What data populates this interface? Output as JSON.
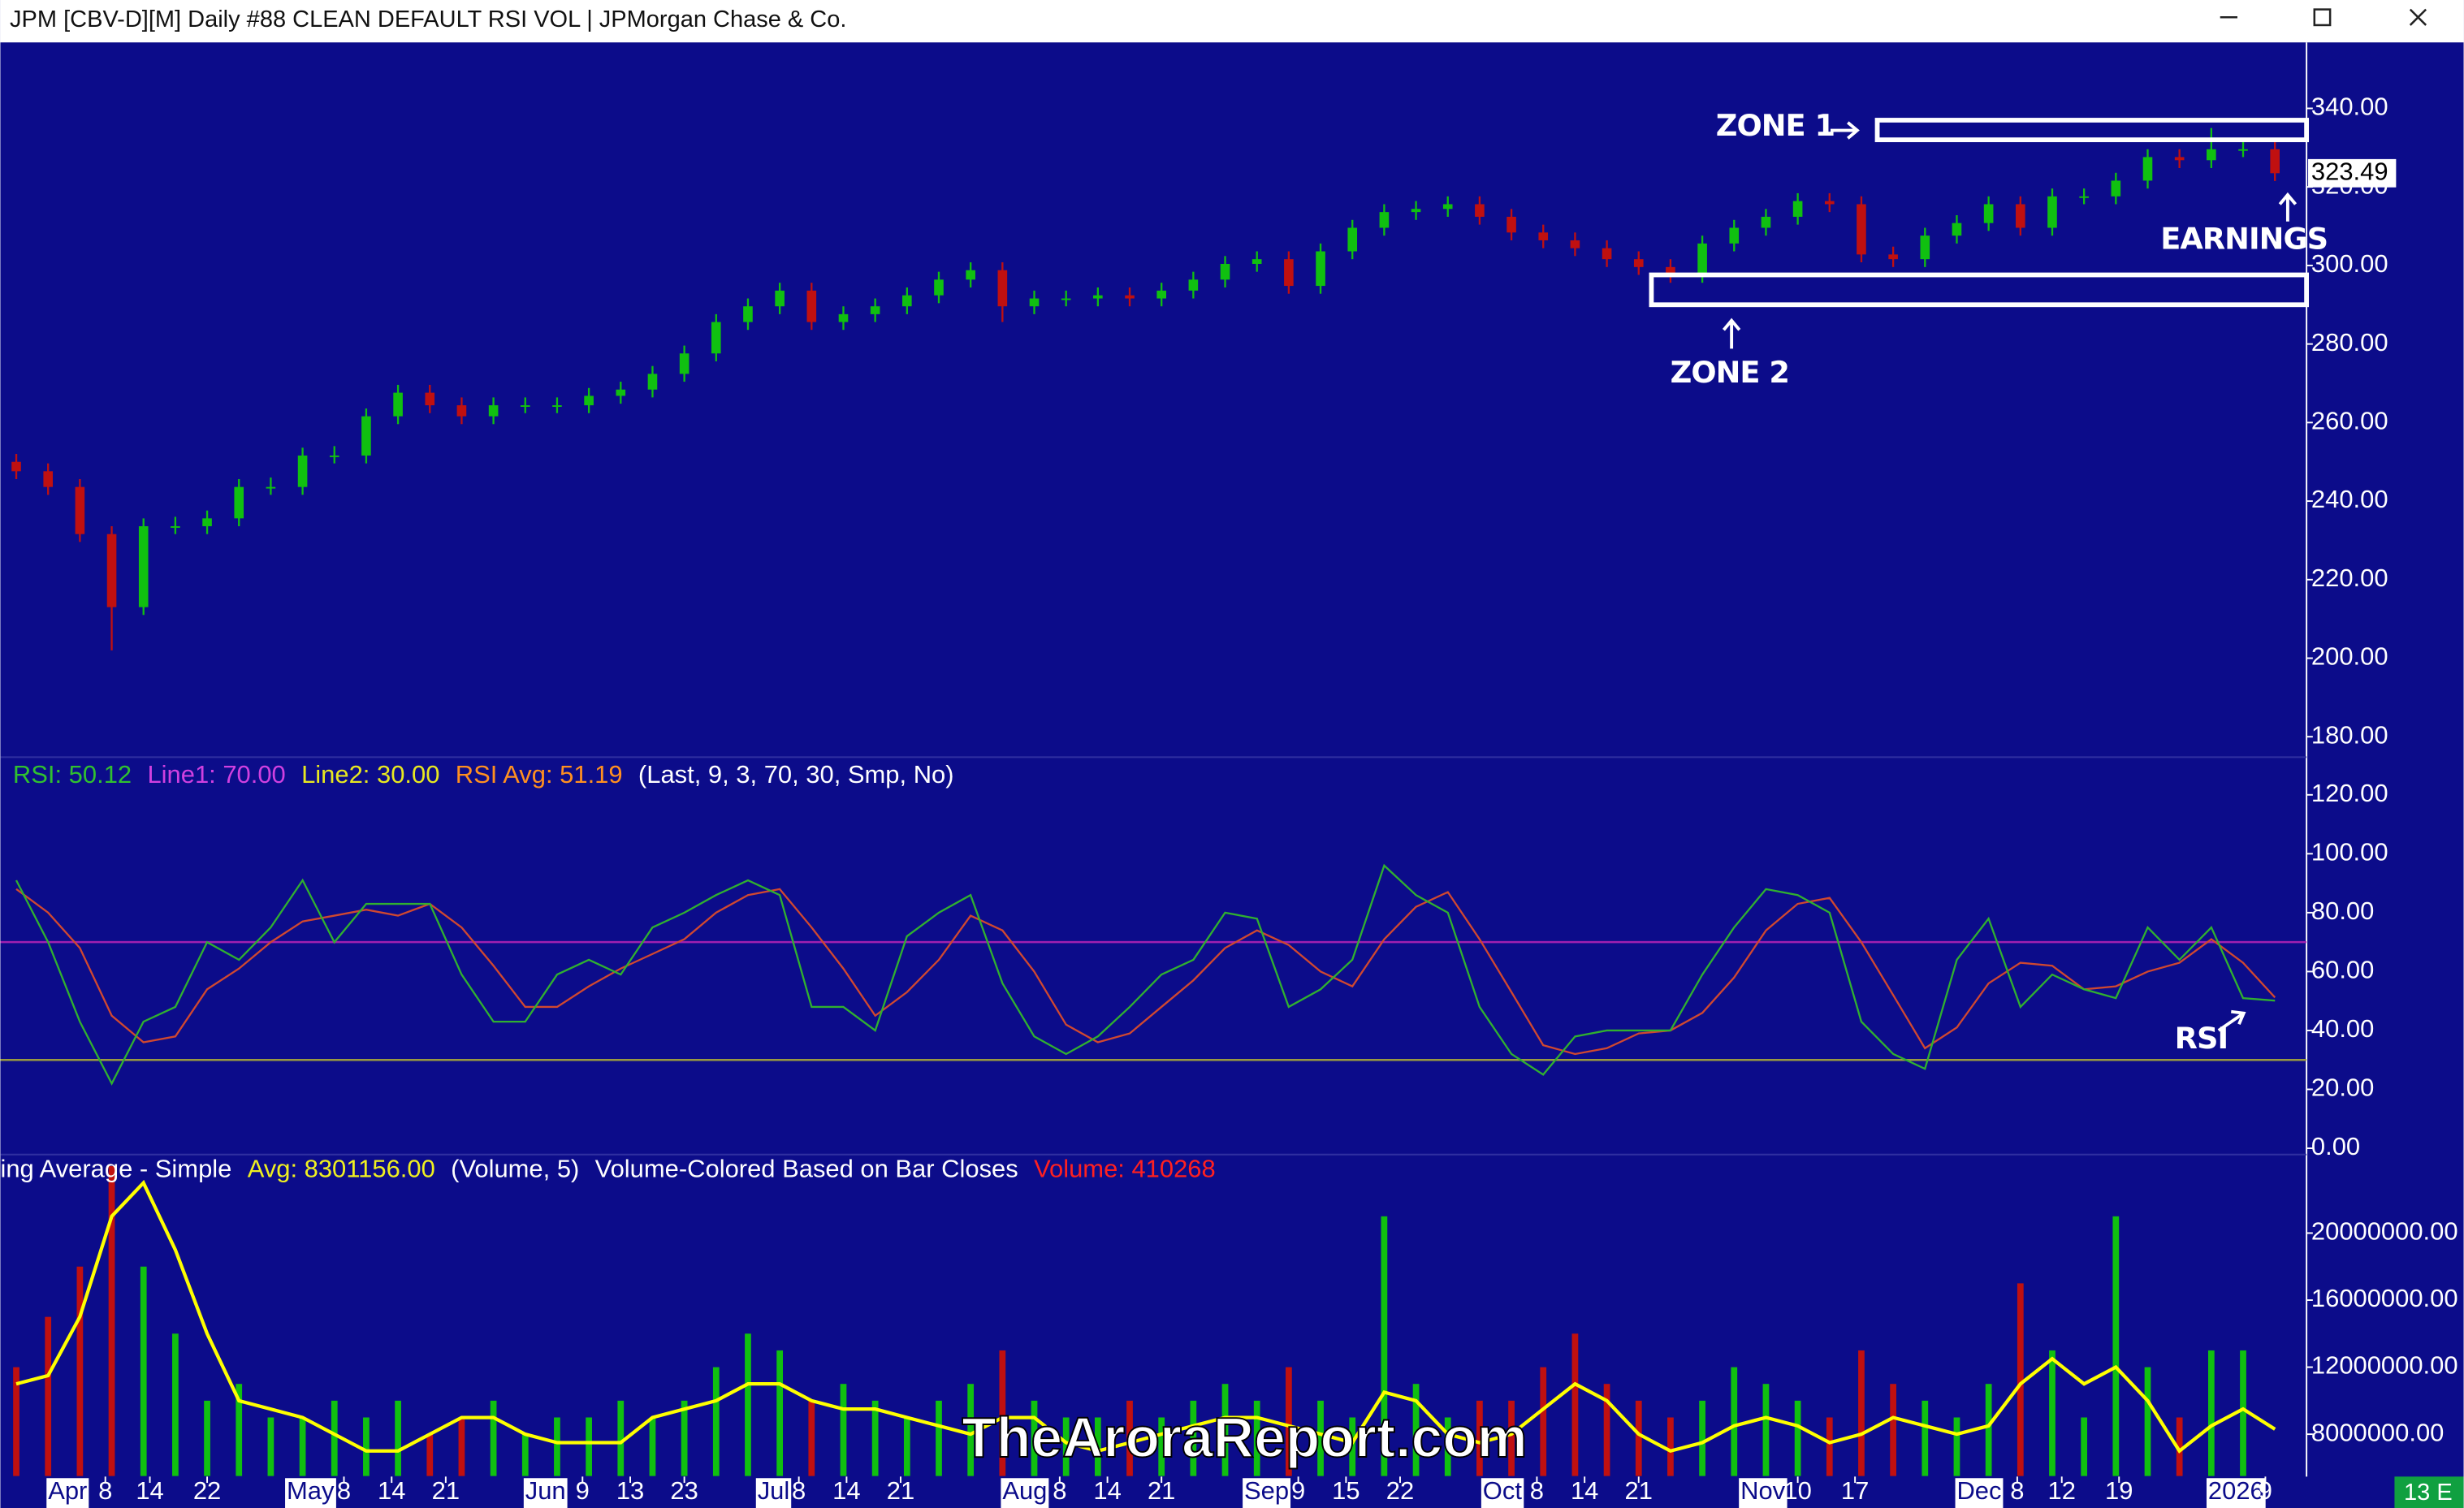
{
  "window_title": "JPM [CBV-D][M]  Daily #88 CLEAN DEFAULT RSI VOL | JPMorgan Chase & Co.",
  "x_axis": {
    "xlim": [
      -0.5,
      71.5
    ],
    "xticks": [
      {
        "value": 1.0,
        "label": "Apr"
      },
      {
        "value": 2.8,
        "label": "8"
      },
      {
        "value": 4.2,
        "label": "14"
      },
      {
        "value": 6.0,
        "label": "22"
      },
      {
        "value": 8.5,
        "label": "May"
      },
      {
        "value": 10.3,
        "label": "8"
      },
      {
        "value": 11.8,
        "label": "14"
      },
      {
        "value": 13.5,
        "label": "21"
      },
      {
        "value": 16.0,
        "label": "Jun"
      },
      {
        "value": 17.8,
        "label": "9"
      },
      {
        "value": 19.3,
        "label": "13"
      },
      {
        "value": 21.0,
        "label": "23"
      },
      {
        "value": 23.3,
        "label": "Jul"
      },
      {
        "value": 24.6,
        "label": "8"
      },
      {
        "value": 26.1,
        "label": "14"
      },
      {
        "value": 27.8,
        "label": "21"
      },
      {
        "value": 31.0,
        "label": "Aug"
      },
      {
        "value": 32.8,
        "label": "8"
      },
      {
        "value": 34.3,
        "label": "14"
      },
      {
        "value": 36.0,
        "label": "21"
      },
      {
        "value": 38.6,
        "label": "Sep"
      },
      {
        "value": 40.3,
        "label": "9"
      },
      {
        "value": 41.8,
        "label": "15"
      },
      {
        "value": 43.5,
        "label": "22"
      },
      {
        "value": 46.1,
        "label": "Oct"
      },
      {
        "value": 47.8,
        "label": "8"
      },
      {
        "value": 49.3,
        "label": "14"
      },
      {
        "value": 51.0,
        "label": "21"
      },
      {
        "value": 54.2,
        "label": "Nov"
      },
      {
        "value": 56.0,
        "label": "10"
      },
      {
        "value": 57.8,
        "label": "17"
      },
      {
        "value": 61.0,
        "label": "Dec"
      },
      {
        "value": 62.9,
        "label": "8"
      },
      {
        "value": 64.3,
        "label": "12"
      },
      {
        "value": 66.1,
        "label": "19"
      },
      {
        "value": 68.9,
        "label": "2026"
      },
      {
        "value": 70.7,
        "label": "9"
      }
    ]
  },
  "chart_data": [
    {
      "type": "candlestick",
      "up_color": "#10c010",
      "down_color": "#c01010",
      "ylim": [
        176,
        356
      ],
      "yticks": [
        {
          "value": 180,
          "label": "180.00"
        },
        {
          "value": 200,
          "label": "200.00"
        },
        {
          "value": 220,
          "label": "220.00"
        },
        {
          "value": 240,
          "label": "240.00"
        },
        {
          "value": 260,
          "label": "260.00"
        },
        {
          "value": 280,
          "label": "280.00"
        },
        {
          "value": 300,
          "label": "300.00"
        },
        {
          "value": 320,
          "label": "320.00"
        },
        {
          "value": 340,
          "label": "340.00"
        }
      ],
      "open": [
        250,
        247.6,
        243.6,
        231.6,
        213,
        233.6,
        233.6,
        235.6,
        243.6,
        243.6,
        251.6,
        251.6,
        261.6,
        267.6,
        264.4,
        261.6,
        264.4,
        264.4,
        264.4,
        266.8,
        268.4,
        272.4,
        277.6,
        285.6,
        289.6,
        293.6,
        285.6,
        287.6,
        289.6,
        292.4,
        296.4,
        298.8,
        289.6,
        291.6,
        291.6,
        292.4,
        291.6,
        293.6,
        296.4,
        300.4,
        301.6,
        294.8,
        303.6,
        309.6,
        313.6,
        314.4,
        315.6,
        312.4,
        308.4,
        306.4,
        304.4,
        301.6,
        299.6,
        297.6,
        305.6,
        309.6,
        312.4,
        316.4,
        315.6,
        302.8,
        301.6,
        307.6,
        310.8,
        315.6,
        309.6,
        317.6,
        317.6,
        321.6,
        327.6,
        326.8,
        329.6,
        329.6
      ],
      "high": [
        252,
        249.6,
        245.6,
        233.6,
        235.6,
        236,
        237.6,
        245.6,
        246,
        253.6,
        254,
        263.6,
        269.6,
        269.6,
        266.4,
        266.4,
        266.4,
        266.4,
        268.8,
        270.4,
        274.4,
        279.6,
        287.6,
        291.6,
        295.6,
        295.6,
        289.6,
        291.6,
        294.4,
        298.4,
        300.8,
        300.8,
        293.6,
        293.6,
        294.4,
        294.4,
        295.6,
        298.4,
        302.4,
        303.6,
        303.6,
        305.6,
        311.6,
        315.6,
        316.4,
        317.6,
        317.6,
        314.4,
        310.4,
        308.4,
        306.4,
        303.6,
        301.6,
        307.6,
        311.6,
        314.4,
        318.4,
        318.4,
        317.6,
        304.8,
        309.6,
        312.8,
        317.6,
        317.6,
        319.6,
        319.6,
        323.6,
        329.6,
        329.6,
        335,
        331.6,
        331.6
      ],
      "low": [
        245.6,
        241.6,
        229.6,
        202,
        211,
        231.6,
        231.6,
        233.6,
        241.6,
        241.6,
        249.6,
        249.6,
        259.6,
        262.4,
        259.6,
        259.6,
        262.4,
        262.4,
        262.4,
        264.8,
        266.4,
        270.4,
        275.6,
        283.6,
        287.6,
        283.6,
        283.6,
        285.6,
        287.6,
        290.4,
        294.4,
        285.6,
        287.6,
        289.6,
        289.6,
        289.6,
        289.6,
        291.6,
        294.4,
        298.4,
        292.8,
        292.8,
        301.6,
        307.6,
        311.6,
        312.4,
        310.4,
        306.4,
        304.4,
        302.4,
        299.6,
        297.6,
        295.6,
        295.6,
        303.6,
        307.6,
        310.4,
        313.6,
        300.8,
        299.6,
        299.6,
        305.6,
        308.8,
        307.6,
        307.6,
        315.6,
        315.6,
        319.6,
        324.8,
        324.8,
        327.6,
        321.5
      ],
      "close": [
        247.6,
        243.6,
        231.6,
        213,
        233.6,
        233.6,
        235.6,
        243.6,
        243.6,
        251.6,
        251.6,
        261.6,
        267.6,
        264.4,
        261.6,
        264.4,
        264.4,
        264.4,
        266.8,
        268.4,
        272.4,
        277.6,
        285.6,
        289.6,
        293.6,
        285.6,
        287.6,
        289.6,
        292.4,
        296.4,
        298.8,
        289.6,
        291.6,
        291.6,
        292.4,
        291.6,
        293.6,
        296.4,
        300.4,
        301.6,
        294.8,
        303.6,
        309.6,
        313.6,
        314.4,
        315.6,
        312.4,
        308.4,
        306.4,
        304.4,
        301.6,
        299.6,
        297.6,
        305.6,
        309.6,
        312.4,
        316.4,
        315.6,
        302.8,
        301.6,
        307.6,
        310.8,
        315.6,
        309.6,
        317.6,
        317.6,
        321.6,
        327.6,
        326.8,
        329.6,
        329.6,
        323.49
      ],
      "zones": [
        {
          "label": "ZONE 1",
          "low": 332,
          "high": 337,
          "start": 58.5
        },
        {
          "label": "ZONE 2",
          "low": 290,
          "high": 297.6,
          "start": 51.4
        }
      ],
      "annotation": "EARNINGS"
    },
    {
      "type": "line",
      "legend": [
        {
          "text": "RSI: 50.12",
          "color": "#30c030"
        },
        {
          "text": "Line1: 70.00",
          "color": "#d040e0"
        },
        {
          "text": "Line2: 30.00",
          "color": "#e8e820"
        },
        {
          "text": "RSI Avg: 51.19",
          "color": "#ff9020"
        },
        {
          "text": "(Last, 9, 3, 70, 30, Smp, No)",
          "color": "#ffffff"
        }
      ],
      "ylim": [
        0,
        126
      ],
      "yticks": [
        {
          "value": 0,
          "label": "0.00"
        },
        {
          "value": 20,
          "label": "20.00"
        },
        {
          "value": 40,
          "label": "40.00"
        },
        {
          "value": 60,
          "label": "60.00"
        },
        {
          "value": 80,
          "label": "80.00"
        },
        {
          "value": 100,
          "label": "100.00"
        },
        {
          "value": 120,
          "label": "120.00"
        }
      ],
      "reference_lines": [
        {
          "value": 70,
          "color": "#a020b0"
        },
        {
          "value": 30,
          "color": "#9a9a40"
        }
      ],
      "series": [
        {
          "color": "#30b030",
          "values": [
            91,
            70,
            43,
            22,
            43,
            48,
            70,
            64,
            75,
            91,
            70,
            83,
            83,
            83,
            59,
            43,
            43,
            59,
            64,
            59,
            75,
            80,
            86,
            91,
            86,
            48,
            48,
            40,
            72,
            80,
            86,
            56,
            38,
            32,
            38,
            48,
            59,
            64,
            80,
            78,
            48,
            54,
            64,
            96,
            86,
            80,
            48,
            32,
            25,
            38,
            40,
            40,
            40,
            59,
            75,
            88,
            86,
            80,
            43,
            32,
            27,
            64,
            78,
            48,
            59,
            54,
            51,
            75,
            64,
            75,
            51,
            50.12
          ]
        },
        {
          "color": "#d04830",
          "values": [
            88,
            80,
            68,
            45,
            36,
            38,
            54,
            61,
            70,
            77,
            79,
            81,
            79,
            83,
            75,
            62,
            48,
            48,
            55,
            61,
            66,
            71,
            80,
            86,
            88,
            75,
            61,
            45,
            53,
            64,
            79,
            74,
            60,
            42,
            36,
            39,
            48,
            57,
            68,
            74,
            69,
            60,
            55,
            71,
            82,
            87,
            71,
            53,
            35,
            32,
            34,
            39,
            40,
            46,
            58,
            74,
            83,
            85,
            70,
            52,
            34,
            41,
            56,
            63,
            62,
            54,
            55,
            60,
            63,
            71,
            63,
            51.19
          ]
        }
      ],
      "annotation": "RSI"
    },
    {
      "type": "volume",
      "legend": [
        {
          "text": "ing Average - Simple",
          "color": "#ffffff"
        },
        {
          "text": "Avg: 8301156.00",
          "color": "#f0f020"
        },
        {
          "text": "(Volume, 5)",
          "color": "#ffffff"
        },
        {
          "text": "Volume-Colored Based on Bar Closes",
          "color": "#ffffff"
        },
        {
          "text": "Volume: 410268",
          "color": "#ff2020"
        }
      ],
      "ylim": [
        5500000,
        24000000
      ],
      "yticks": [
        {
          "value": 8000000,
          "label": "8000000.00"
        },
        {
          "value": 12000000,
          "label": "12000000.00"
        },
        {
          "value": 16000000,
          "label": "16000000.00"
        },
        {
          "value": 20000000,
          "label": "20000000.00"
        }
      ],
      "values": [
        12000000,
        15000000,
        18000000,
        24000000,
        18000000,
        14000000,
        10000000,
        11000000,
        9000000,
        9000000,
        10000000,
        9000000,
        10000000,
        8000000,
        9000000,
        10000000,
        8000000,
        9000000,
        9000000,
        10000000,
        9000000,
        10000000,
        12000000,
        14000000,
        13000000,
        10000000,
        11000000,
        10000000,
        9000000,
        10000000,
        11000000,
        13000000,
        10000000,
        9000000,
        9000000,
        10000000,
        9000000,
        10000000,
        11000000,
        10000000,
        12000000,
        10000000,
        9000000,
        21000000,
        11000000,
        9000000,
        10000000,
        10000000,
        12000000,
        14000000,
        11000000,
        10000000,
        9000000,
        10000000,
        12000000,
        11000000,
        10000000,
        9000000,
        13000000,
        11000000,
        10000000,
        9000000,
        11000000,
        17000000,
        13000000,
        9000000,
        21000000,
        12000000,
        9000000,
        13000000,
        13000000,
        410268
      ],
      "average": {
        "color": "#ffff00",
        "values": [
          11000000,
          11500000,
          15000000,
          21000000,
          23000000,
          19000000,
          14000000,
          10000000,
          9500000,
          9000000,
          8000000,
          7000000,
          7000000,
          8000000,
          9000000,
          9000000,
          8000000,
          7500000,
          7500000,
          7500000,
          9000000,
          9500000,
          10000000,
          11000000,
          11000000,
          10000000,
          9500000,
          9500000,
          9000000,
          8500000,
          8000000,
          9000000,
          9000000,
          7500000,
          7000000,
          7500000,
          8000000,
          8500000,
          9000000,
          9000000,
          8500000,
          8000000,
          7500000,
          10500000,
          10000000,
          8000000,
          7500000,
          8000000,
          9500000,
          11000000,
          10000000,
          8000000,
          7000000,
          7500000,
          8500000,
          9000000,
          8500000,
          7500000,
          8000000,
          9000000,
          8500000,
          8000000,
          8500000,
          11000000,
          12500000,
          11000000,
          12000000,
          10000000,
          7000000,
          8500000,
          9500000,
          8301156
        ]
      }
    }
  ],
  "watermark": "TheAroraReport.com",
  "corner_badge": "13 E"
}
